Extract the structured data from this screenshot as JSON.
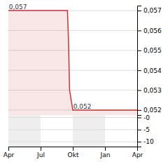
{
  "chart_data": [
    {
      "type": "line",
      "x": [
        0,
        5.5,
        5.5,
        5.6,
        5.7,
        6.0,
        6.2,
        12
      ],
      "values": [
        0.057,
        0.057,
        0.057,
        0.0555,
        0.053,
        0.052,
        0.052,
        0.052
      ],
      "color": "#cc3333",
      "xlim": [
        0,
        12
      ],
      "ylim": [
        0.05175,
        0.05725
      ],
      "yticks": [
        {
          "value": 0.052,
          "label": "0,052"
        },
        {
          "value": 0.053,
          "label": "0,053"
        },
        {
          "value": 0.054,
          "label": "0,054"
        },
        {
          "value": 0.055,
          "label": "0,055"
        },
        {
          "value": 0.056,
          "label": "0,056"
        },
        {
          "value": 0.057,
          "label": "0,057"
        }
      ],
      "annotations": [
        {
          "text": "0,057",
          "x": 0.05,
          "y": 0.057
        },
        {
          "text": "0,052",
          "x": 6.05,
          "y": 0.052
        }
      ],
      "grid": true,
      "tick_labels": "y"
    },
    {
      "type": "bar",
      "xlim": [
        0,
        12
      ],
      "xticks": [
        {
          "value": 0,
          "label": "Apr"
        },
        {
          "value": 3,
          "label": "Jul"
        },
        {
          "value": 6,
          "label": "Okt"
        },
        {
          "value": 9,
          "label": "Jan"
        },
        {
          "value": 12,
          "label": "Apr"
        }
      ],
      "ylim": [
        -12,
        1
      ],
      "yticks": [
        -10,
        -5,
        {
          "value": 0,
          "label": "-0"
        }
      ],
      "grid": true
    }
  ]
}
